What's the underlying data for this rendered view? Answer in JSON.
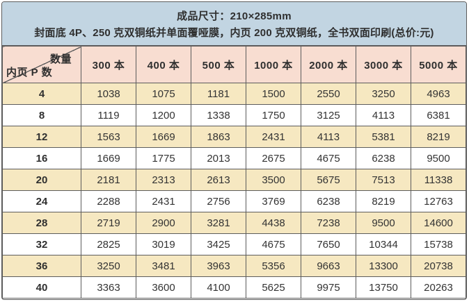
{
  "header": {
    "line1": "成品尺寸：210×285mm",
    "line2": "封面底 4P、250 克双铜纸并单面覆哑膜，内页 200 克双铜纸，全书双面印刷(总价:元)"
  },
  "table": {
    "corner": {
      "top_right": "数量",
      "bottom_left": "内页 P 数"
    },
    "columns": [
      "300 本",
      "400 本",
      "500 本",
      "1000 本",
      "2000 本",
      "3000 本",
      "5000 本"
    ],
    "rows": [
      {
        "pages": "4",
        "values": [
          1038,
          1075,
          1181,
          1500,
          2550,
          3250,
          4963
        ]
      },
      {
        "pages": "8",
        "values": [
          1119,
          1200,
          1338,
          1750,
          3125,
          4113,
          6381
        ]
      },
      {
        "pages": "12",
        "values": [
          1563,
          1669,
          1863,
          2431,
          4113,
          5381,
          8219
        ]
      },
      {
        "pages": "16",
        "values": [
          1669,
          1775,
          2013,
          2675,
          4675,
          6238,
          9500
        ]
      },
      {
        "pages": "20",
        "values": [
          2181,
          2313,
          2613,
          3500,
          5675,
          7513,
          11338
        ]
      },
      {
        "pages": "24",
        "values": [
          2288,
          2431,
          2756,
          3769,
          6238,
          8219,
          12763
        ]
      },
      {
        "pages": "28",
        "values": [
          2719,
          2900,
          3281,
          4438,
          7238,
          9500,
          14600
        ]
      },
      {
        "pages": "32",
        "values": [
          2825,
          3019,
          3425,
          4675,
          7650,
          10344,
          15738
        ]
      },
      {
        "pages": "36",
        "values": [
          3250,
          3481,
          3963,
          5356,
          9663,
          13300,
          20738
        ]
      },
      {
        "pages": "40",
        "values": [
          3363,
          3600,
          4100,
          5625,
          9975,
          13750,
          20263
        ]
      }
    ]
  },
  "colors": {
    "header_bg": "#c2d5e2",
    "column_header_bg": "#f8ddd1",
    "row_alt_bg": "#f6e8c1",
    "row_bg": "#ffffff",
    "border": "#5c5c5c",
    "text": "#2f2f2f"
  }
}
